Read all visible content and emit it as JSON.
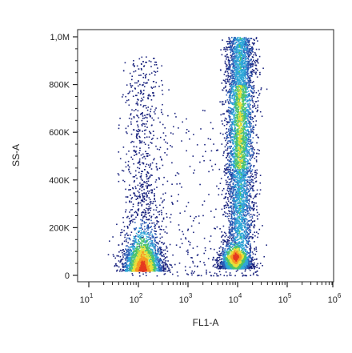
{
  "chart_data": {
    "type": "scatter",
    "subtype": "flow-cytometry-density-dot-plot",
    "title": "",
    "xlabel": "FL1-A",
    "ylabel": "SS-A",
    "x_scale": "log",
    "xlim": [
      10,
      1000000
    ],
    "ylim": [
      0,
      1000000
    ],
    "x_ticks": [
      {
        "base": "10",
        "exp": "1",
        "value": 10
      },
      {
        "base": "10",
        "exp": "2",
        "value": 100
      },
      {
        "base": "10",
        "exp": "3",
        "value": 1000
      },
      {
        "base": "10",
        "exp": "4",
        "value": 10000
      },
      {
        "base": "10",
        "exp": "5",
        "value": 100000
      },
      {
        "base": "10",
        "exp": "6",
        "value": 1000000
      }
    ],
    "y_ticks": [
      {
        "label": "0",
        "value": 0
      },
      {
        "label": "200K",
        "value": 200000
      },
      {
        "label": "400K",
        "value": 400000
      },
      {
        "label": "600K",
        "value": 600000
      },
      {
        "label": "800K",
        "value": 800000
      },
      {
        "label": "1,0M",
        "value": 1000000
      }
    ],
    "grid": false,
    "legend": "none",
    "colormap": [
      "#1a237e",
      "#2c5fb8",
      "#2fa8d8",
      "#4cc46a",
      "#e8e03a",
      "#f59a23",
      "#e53920"
    ],
    "populations": [
      {
        "id": "negative",
        "x_center": 120,
        "x_log_sd": 0.2,
        "y_center": 80000,
        "y_spread": 900000,
        "relative_count": 0.3
      },
      {
        "id": "positive-low-ss",
        "x_center": 9000,
        "x_log_sd": 0.15,
        "y_center": 70000,
        "y_spread": 120000,
        "relative_count": 0.22
      },
      {
        "id": "positive-high-ss",
        "x_center": 11000,
        "x_log_sd": 0.14,
        "y_center": 600000,
        "y_spread": 1000000,
        "relative_count": 0.48
      }
    ]
  }
}
